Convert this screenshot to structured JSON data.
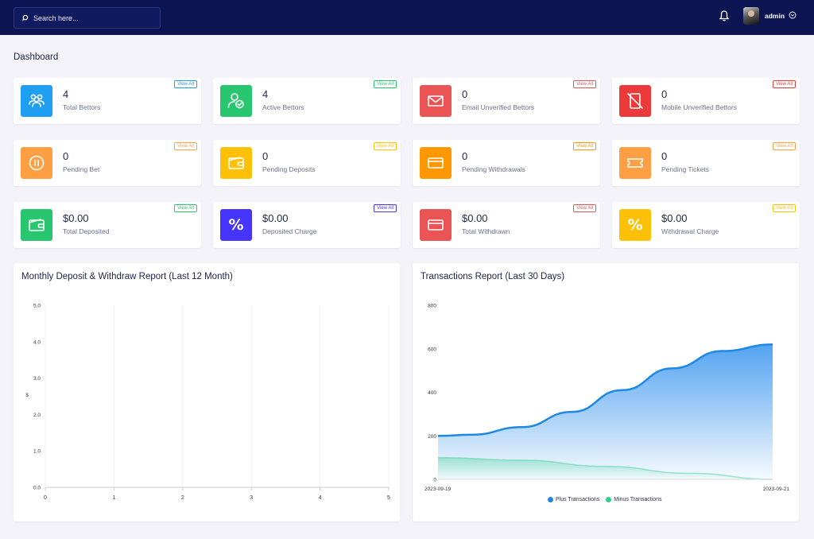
{
  "header": {
    "search_placeholder": "Search here...",
    "user_name": "admin"
  },
  "page_title": "Dashboard",
  "view_all_label": "View All",
  "cards": [
    {
      "value": "4",
      "label": "Total Bettors",
      "color": "#1e9ff2",
      "icon": "users-icon"
    },
    {
      "value": "4",
      "label": "Active Bettors",
      "color": "#28c76f",
      "icon": "user-check-icon"
    },
    {
      "value": "0",
      "label": "Email Unverified Bettors",
      "color": "#ea5455",
      "icon": "envelope-icon"
    },
    {
      "value": "0",
      "label": "Mobile Unverified Bettors",
      "color": "#ea3a3a",
      "icon": "mobile-off-icon"
    },
    {
      "value": "0",
      "label": "Pending Bet",
      "color": "#ff9f43",
      "icon": "pause-circle-icon"
    },
    {
      "value": "0",
      "label": "Pending Deposits",
      "color": "#ffc107",
      "icon": "wallet-icon"
    },
    {
      "value": "0",
      "label": "Pending Withdrawals",
      "color": "#ff9800",
      "icon": "card-icon"
    },
    {
      "value": "0",
      "label": "Pending Tickets",
      "color": "#ff9f43",
      "icon": "ticket-icon"
    },
    {
      "value": "$0.00",
      "label": "Total Deposited",
      "color": "#28c76f",
      "icon": "wallet-icon"
    },
    {
      "value": "$0.00",
      "label": "Deposited Charge",
      "color": "#4634ff",
      "icon": "percent-icon"
    },
    {
      "value": "$0.00",
      "label": "Total Withdrawn",
      "color": "#ea5455",
      "icon": "card-icon"
    },
    {
      "value": "$0.00",
      "label": "Withdrawal Charge",
      "color": "#ffc107",
      "icon": "percent-icon"
    }
  ],
  "panels": {
    "monthly_title": "Monthly Deposit & Withdraw Report (Last 12 Month)",
    "transactions_title": "Transactions Report (Last 30 Days)"
  },
  "chart_data": [
    {
      "type": "line",
      "title": "Monthly Deposit & Withdraw Report (Last 12 Month)",
      "ylabel": "$",
      "x_ticks": [
        "0",
        "1",
        "2",
        "3",
        "4",
        "5"
      ],
      "y_ticks": [
        "0.0",
        "1.0",
        "2.0",
        "3.0",
        "4.0",
        "5.0"
      ],
      "xlim": [
        0,
        5
      ],
      "ylim": [
        0,
        5
      ],
      "series": [],
      "grid": "vertical"
    },
    {
      "type": "area",
      "title": "Transactions Report (Last 30 Days)",
      "x_labels": [
        "2023-09-19",
        "2023-09-21"
      ],
      "y_ticks": [
        "0",
        "200",
        "400",
        "600",
        "800"
      ],
      "ylim": [
        0,
        800
      ],
      "series": [
        {
          "name": "Plus Transactions",
          "color": "#1e88e5",
          "x": [
            0,
            0.1,
            0.25,
            0.4,
            0.55,
            0.7,
            0.85,
            1
          ],
          "y": [
            200,
            205,
            240,
            310,
            410,
            510,
            590,
            620
          ]
        },
        {
          "name": "Minus Transactions",
          "color": "#2ed08a",
          "x": [
            0,
            0.25,
            0.5,
            0.75,
            1
          ],
          "y": [
            100,
            88,
            60,
            28,
            0
          ]
        }
      ],
      "legend": "bottom-center"
    }
  ]
}
